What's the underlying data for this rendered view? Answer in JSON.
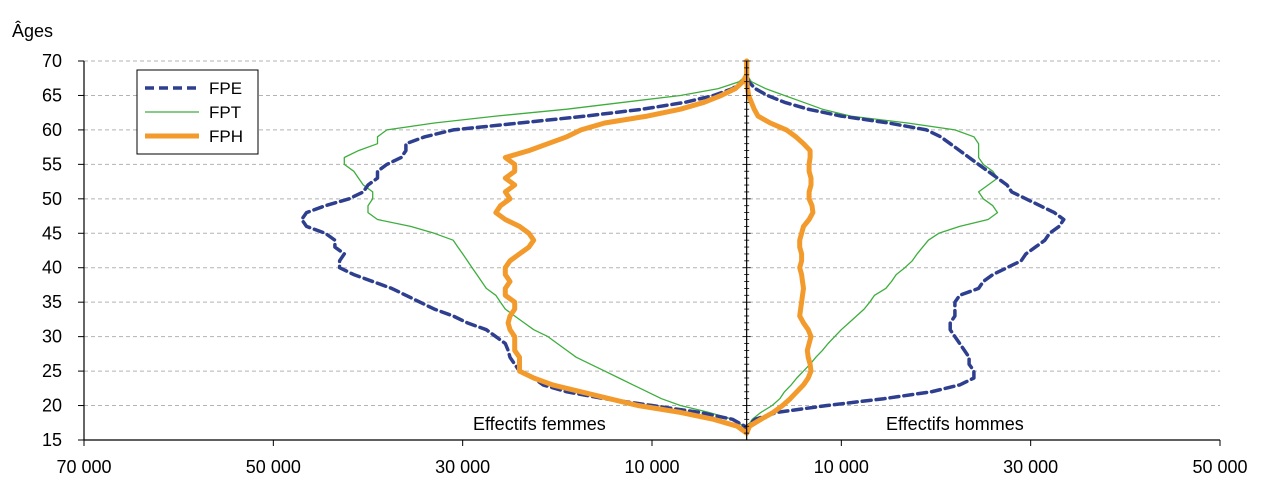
{
  "chart_data": {
    "type": "line",
    "title": "",
    "ylabel": "Âges",
    "xlabel": "",
    "ylim": [
      15,
      70
    ],
    "y_ticks": [
      15,
      20,
      25,
      30,
      35,
      40,
      45,
      50,
      55,
      60,
      65,
      70
    ],
    "x_ticks": [
      {
        "label": "70 000",
        "value": -70000
      },
      {
        "label": "50 000",
        "value": -50000
      },
      {
        "label": "30 000",
        "value": -30000
      },
      {
        "label": "10 000",
        "value": -10000
      },
      {
        "label": "10 000",
        "value": 10000
      },
      {
        "label": "30 000",
        "value": 30000
      },
      {
        "label": "50 000",
        "value": 50000
      }
    ],
    "xlim": [
      -70000,
      50000
    ],
    "annotations": {
      "women": "Effectifs femmes",
      "men": "Effectifs hommes"
    },
    "legend_position": "top-left",
    "grid": true,
    "ages": [
      16,
      17,
      18,
      19,
      20,
      21,
      22,
      23,
      24,
      25,
      26,
      27,
      28,
      29,
      30,
      31,
      32,
      33,
      34,
      35,
      36,
      37,
      38,
      39,
      40,
      41,
      42,
      43,
      44,
      45,
      46,
      47,
      48,
      49,
      50,
      51,
      52,
      53,
      54,
      55,
      56,
      57,
      58,
      59,
      60,
      61,
      62,
      63,
      64,
      65,
      66,
      67,
      68,
      69,
      70
    ],
    "series": [
      {
        "name": "FPE",
        "color": "#2e3f8f",
        "style": "dashed",
        "women": [
          0,
          200,
          1500,
          5000,
          10000,
          15000,
          19000,
          21500,
          22500,
          24000,
          24500,
          25000,
          25200,
          25500,
          26500,
          27500,
          29500,
          31000,
          33000,
          34500,
          36000,
          37500,
          39500,
          41500,
          43000,
          43000,
          42500,
          43500,
          43500,
          44500,
          46500,
          47000,
          46500,
          44500,
          42000,
          40500,
          40000,
          39000,
          39000,
          38000,
          36500,
          36000,
          36000,
          34000,
          31000,
          24000,
          17000,
          11000,
          6500,
          3500,
          1500,
          400,
          0,
          0,
          0
        ],
        "men": [
          0,
          100,
          900,
          3200,
          8500,
          14500,
          19500,
          22500,
          24000,
          24000,
          23500,
          23500,
          23000,
          22500,
          22000,
          21500,
          21500,
          22000,
          22000,
          22000,
          22500,
          24500,
          25000,
          26000,
          27500,
          29000,
          29500,
          30500,
          31500,
          32000,
          33000,
          33500,
          32500,
          31000,
          29500,
          28000,
          27500,
          26500,
          25500,
          24500,
          23500,
          22500,
          21500,
          20500,
          19000,
          15000,
          10000,
          6500,
          4000,
          2200,
          900,
          200,
          0,
          0,
          0
        ]
      },
      {
        "name": "FPT",
        "color": "#3dae3d",
        "style": "solid",
        "women": [
          0,
          300,
          1500,
          4000,
          7000,
          9000,
          10500,
          12000,
          13500,
          15000,
          16500,
          18000,
          19000,
          20000,
          21000,
          22500,
          23500,
          24500,
          25500,
          26000,
          26500,
          27500,
          28000,
          28500,
          29000,
          29500,
          30000,
          30500,
          31000,
          33000,
          35500,
          39000,
          40000,
          40000,
          39500,
          39500,
          40500,
          41000,
          41500,
          42500,
          42500,
          41000,
          39000,
          39000,
          38000,
          33000,
          26500,
          19000,
          13000,
          7000,
          3000,
          800,
          0,
          0,
          0
        ],
        "men": [
          0,
          100,
          600,
          1500,
          2700,
          3500,
          4000,
          4700,
          5300,
          6000,
          6700,
          7300,
          8000,
          8600,
          9300,
          10000,
          10800,
          11600,
          12400,
          13000,
          13500,
          14700,
          15300,
          15800,
          16700,
          17500,
          18000,
          18600,
          19200,
          20300,
          22500,
          25500,
          26500,
          26000,
          25000,
          24500,
          25500,
          26500,
          26000,
          25000,
          24500,
          24500,
          24500,
          24000,
          22000,
          17000,
          11000,
          8000,
          6000,
          4000,
          2000,
          500,
          0,
          0,
          0
        ]
      },
      {
        "name": "FPH",
        "color": "#f39a2c",
        "style": "thick",
        "women": [
          0,
          1000,
          3500,
          7000,
          11500,
          14500,
          17500,
          20500,
          22500,
          24000,
          24000,
          24000,
          24500,
          24500,
          24500,
          25000,
          25200,
          25000,
          24500,
          24500,
          25500,
          25500,
          25000,
          25500,
          25500,
          25000,
          24000,
          23000,
          22500,
          23000,
          24000,
          25500,
          26500,
          26000,
          25000,
          25500,
          24500,
          25500,
          24500,
          24500,
          25500,
          23000,
          21000,
          19000,
          17500,
          15000,
          10500,
          7000,
          4500,
          2700,
          1200,
          400,
          0,
          0,
          0
        ],
        "men": [
          0,
          300,
          1500,
          2800,
          3800,
          4600,
          5300,
          6000,
          6500,
          6800,
          6700,
          6500,
          6400,
          6600,
          6800,
          6500,
          6000,
          5600,
          5700,
          5800,
          5900,
          6000,
          5900,
          5800,
          5600,
          5800,
          5800,
          5600,
          5600,
          5800,
          6000,
          6600,
          7000,
          6900,
          6600,
          6600,
          6800,
          6800,
          6600,
          6600,
          6700,
          6700,
          6000,
          5200,
          4200,
          2500,
          1200,
          800,
          500,
          200,
          100,
          0,
          0,
          0,
          0
        ]
      }
    ]
  }
}
